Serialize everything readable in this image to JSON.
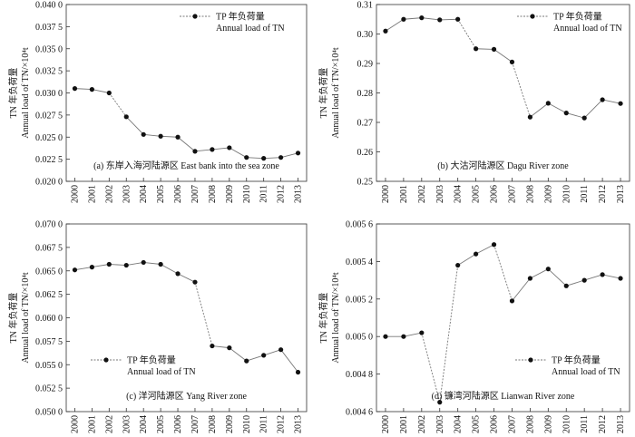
{
  "chart_data": [
    {
      "type": "line",
      "caption": "(a) 东岸入海河陆源区 East bank into the sea zone",
      "ylabel_cn": "TN 年负荷量",
      "ylabel_en": "Annual load of TN/×10⁴t",
      "legend": [
        "TP 年负荷量",
        "Annual load of TN"
      ],
      "legend_position": "top-right",
      "x": [
        "2000",
        "2001",
        "2002",
        "2003",
        "2004",
        "2005",
        "2006",
        "2007",
        "2008",
        "2009",
        "2010",
        "2011",
        "2012",
        "2013"
      ],
      "values": [
        0.0305,
        0.0304,
        0.03,
        0.0273,
        0.0253,
        0.0251,
        0.025,
        0.0234,
        0.0236,
        0.0238,
        0.0227,
        0.0226,
        0.0227,
        0.0232
      ],
      "ylim": [
        0.02,
        0.04
      ],
      "yticks": [
        "0.020 0",
        "0.022 5",
        "0.025 0",
        "0.027 5",
        "0.030 0",
        "0.032 5",
        "0.035 0",
        "0.037 5",
        "0.040 0"
      ],
      "grid": false
    },
    {
      "type": "line",
      "caption": "(b) 大沽河陆源区 Dagu River zone",
      "ylabel_cn": "TN 年负荷量",
      "ylabel_en": "Annual load of TN/×10⁴t",
      "legend": [
        "TP 年负荷量",
        "Annual load of TN"
      ],
      "legend_position": "top-right",
      "x": [
        "2000",
        "2001",
        "2002",
        "2003",
        "2004",
        "2005",
        "2006",
        "2007",
        "2008",
        "2009",
        "2010",
        "2011",
        "2012",
        "2013"
      ],
      "values": [
        0.301,
        0.305,
        0.3055,
        0.3048,
        0.305,
        0.295,
        0.2948,
        0.2905,
        0.2718,
        0.2765,
        0.2732,
        0.2715,
        0.2777,
        0.2764
      ],
      "ylim": [
        0.25,
        0.31
      ],
      "yticks": [
        "0.25",
        "0.26",
        "0.27",
        "0.28",
        "0.29",
        "0.30",
        "0.31"
      ],
      "grid": false
    },
    {
      "type": "line",
      "caption": "(c) 洋河陆源区 Yang River zone",
      "ylabel_cn": "TN 年负荷量",
      "ylabel_en": "Annual load of TN/×10⁴t",
      "legend": [
        "TP 年负荷量",
        "Annual load of TN"
      ],
      "legend_position": "bottom-left",
      "x": [
        "2000",
        "2001",
        "2002",
        "2003",
        "2004",
        "2005",
        "2006",
        "2007",
        "2008",
        "2009",
        "2010",
        "2011",
        "2012",
        "2013"
      ],
      "values": [
        0.0651,
        0.0654,
        0.0657,
        0.0656,
        0.0659,
        0.0657,
        0.0647,
        0.0638,
        0.057,
        0.0568,
        0.0554,
        0.056,
        0.0566,
        0.0542
      ],
      "ylim": [
        0.05,
        0.07
      ],
      "yticks": [
        "0.050 0",
        "0.052 5",
        "0.055 0",
        "0.057 5",
        "0.060 0",
        "0.062 5",
        "0.065 0",
        "0.067 5",
        "0.070 0"
      ],
      "grid": false
    },
    {
      "type": "line",
      "caption": "(d) 镰湾河陆源区 Lianwan River zone",
      "ylabel_cn": "TN 年负荷量",
      "ylabel_en": "Annual load of TN/×10⁴t",
      "legend": [
        "TP 年负荷量",
        "Annual load of TN"
      ],
      "legend_position": "bottom-right",
      "x": [
        "2000",
        "2001",
        "2002",
        "2003",
        "2004",
        "2005",
        "2006",
        "2007",
        "2008",
        "2009",
        "2010",
        "2011",
        "2012",
        "2013"
      ],
      "values": [
        0.005,
        0.005,
        0.00502,
        0.00465,
        0.00538,
        0.00544,
        0.00549,
        0.00519,
        0.00531,
        0.00536,
        0.00527,
        0.0053,
        0.00533,
        0.00531
      ],
      "ylim": [
        0.0046,
        0.0056
      ],
      "yticks": [
        "0.004 6",
        "0.004 8",
        "0.005 0",
        "0.005 2",
        "0.005 4",
        "0.005 6"
      ],
      "grid": false
    }
  ]
}
